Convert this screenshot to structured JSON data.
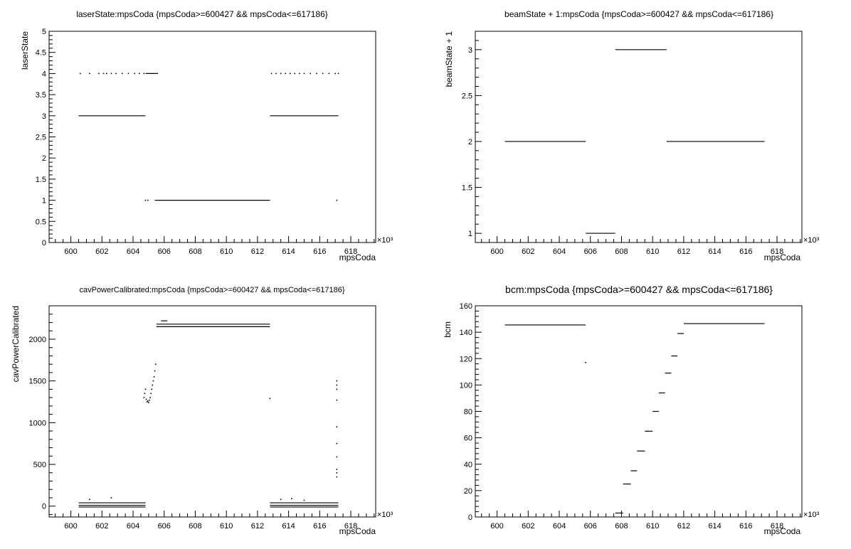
{
  "chart_data": [
    {
      "type": "scatter",
      "title": "laserState:mpsCoda {mpsCoda>=600427 && mpsCoda<=617186}",
      "xlabel": "mpsCoda",
      "ylabel": "laserState",
      "x_multiplier": "×10³",
      "xlim": [
        598.6,
        619.6
      ],
      "ylim": [
        0,
        5
      ],
      "x_ticks": [
        "600",
        "602",
        "604",
        "606",
        "608",
        "610",
        "612",
        "614",
        "616",
        "618"
      ],
      "y_ticks": [
        "0",
        "0.5",
        "1",
        "1.5",
        "2",
        "2.5",
        "3",
        "3.5",
        "4",
        "4.5",
        "5"
      ],
      "segments": [
        {
          "x": [
            600.5,
            604.8
          ],
          "y": 3
        },
        {
          "x": [
            612.8,
            617.2
          ],
          "y": 3
        },
        {
          "x": [
            605.4,
            612.8
          ],
          "y": 1
        },
        {
          "x": [
            604.8,
            605.6
          ],
          "y": 4
        }
      ],
      "points": [
        [
          600.6,
          4
        ],
        [
          601.2,
          4
        ],
        [
          601.8,
          4
        ],
        [
          602.1,
          4
        ],
        [
          602.3,
          4
        ],
        [
          602.6,
          4
        ],
        [
          602.9,
          4
        ],
        [
          603.3,
          4
        ],
        [
          603.7,
          4
        ],
        [
          604.1,
          4
        ],
        [
          604.4,
          4
        ],
        [
          604.7,
          4
        ],
        [
          612.9,
          4
        ],
        [
          613.2,
          4
        ],
        [
          613.5,
          4
        ],
        [
          613.8,
          4
        ],
        [
          614.1,
          4
        ],
        [
          614.4,
          4
        ],
        [
          614.7,
          4
        ],
        [
          615.0,
          4
        ],
        [
          615.4,
          4
        ],
        [
          615.8,
          4
        ],
        [
          616.2,
          4
        ],
        [
          616.6,
          4
        ],
        [
          617.0,
          4
        ],
        [
          617.2,
          4
        ],
        [
          604.8,
          1
        ],
        [
          604.95,
          1
        ],
        [
          617.1,
          1
        ]
      ],
      "grid": false
    },
    {
      "type": "scatter",
      "title": "beamState + 1:mpsCoda {mpsCoda>=600427 && mpsCoda<=617186}",
      "xlabel": "mpsCoda",
      "ylabel": "beamState + 1",
      "x_multiplier": "×10³",
      "xlim": [
        598.6,
        619.6
      ],
      "ylim": [
        0.9,
        3.2
      ],
      "x_ticks": [
        "600",
        "602",
        "604",
        "606",
        "608",
        "610",
        "612",
        "614",
        "616",
        "618"
      ],
      "y_ticks": [
        "1",
        "1.5",
        "2",
        "2.5",
        "3"
      ],
      "segments": [
        {
          "x": [
            600.5,
            605.7
          ],
          "y": 2
        },
        {
          "x": [
            605.7,
            607.6
          ],
          "y": 1
        },
        {
          "x": [
            607.6,
            610.9
          ],
          "y": 3
        },
        {
          "x": [
            610.9,
            617.2
          ],
          "y": 2
        }
      ],
      "points": [],
      "grid": false
    },
    {
      "type": "scatter",
      "title": "cavPowerCalibrated:mpsCoda {mpsCoda>=600427 && mpsCoda<=617186}",
      "xlabel": "mpsCoda",
      "ylabel": "cavPowerCalibrated",
      "x_multiplier": "×10³",
      "xlim": [
        598.6,
        619.6
      ],
      "ylim": [
        -130,
        2400
      ],
      "x_ticks": [
        "600",
        "602",
        "604",
        "606",
        "608",
        "610",
        "612",
        "614",
        "616",
        "618"
      ],
      "y_ticks": [
        "0",
        "500",
        "1000",
        "1500",
        "2000"
      ],
      "segments": [
        {
          "x": [
            600.5,
            604.8
          ],
          "y": -10
        },
        {
          "x": [
            600.5,
            604.8
          ],
          "y": 10
        },
        {
          "x": [
            600.5,
            604.8
          ],
          "y": 40
        },
        {
          "x": [
            612.8,
            617.2
          ],
          "y": -10
        },
        {
          "x": [
            612.8,
            617.2
          ],
          "y": 10
        },
        {
          "x": [
            612.8,
            617.2
          ],
          "y": 40
        },
        {
          "x": [
            605.5,
            612.8
          ],
          "y": 2150
        },
        {
          "x": [
            605.5,
            612.8
          ],
          "y": 2180
        },
        {
          "x": [
            605.8,
            606.2
          ],
          "y": 2220
        }
      ],
      "points": [
        [
          601.2,
          80
        ],
        [
          602.6,
          100
        ],
        [
          613.5,
          80
        ],
        [
          614.2,
          90
        ],
        [
          615.0,
          70
        ],
        [
          612.8,
          1290
        ],
        [
          604.7,
          1300
        ],
        [
          604.75,
          1350
        ],
        [
          604.8,
          1400
        ],
        [
          604.85,
          1280
        ],
        [
          604.9,
          1250
        ],
        [
          604.95,
          1260
        ],
        [
          605.0,
          1240
        ],
        [
          605.05,
          1270
        ],
        [
          605.1,
          1300
        ],
        [
          605.15,
          1350
        ],
        [
          605.2,
          1400
        ],
        [
          605.25,
          1450
        ],
        [
          605.3,
          1500
        ],
        [
          605.35,
          1550
        ],
        [
          605.4,
          1620
        ],
        [
          605.45,
          1700
        ],
        [
          617.1,
          1500
        ],
        [
          617.1,
          1450
        ],
        [
          617.1,
          1400
        ],
        [
          617.1,
          1270
        ],
        [
          617.1,
          950
        ],
        [
          617.1,
          750
        ],
        [
          617.1,
          590
        ],
        [
          617.1,
          440
        ],
        [
          617.1,
          400
        ],
        [
          617.1,
          350
        ]
      ],
      "grid": false
    },
    {
      "type": "scatter",
      "title": "bcm:mpsCoda {mpsCoda>=600427 && mpsCoda<=617186}",
      "xlabel": "mpsCoda",
      "ylabel": "bcm",
      "x_multiplier": "×10³",
      "xlim": [
        598.6,
        619.6
      ],
      "ylim": [
        0,
        160
      ],
      "x_ticks": [
        "600",
        "602",
        "604",
        "606",
        "608",
        "610",
        "612",
        "614",
        "616",
        "618"
      ],
      "y_ticks": [
        "0",
        "20",
        "40",
        "60",
        "80",
        "100",
        "120",
        "140",
        "160"
      ],
      "segments": [
        {
          "x": [
            600.5,
            605.7
          ],
          "y": 145.5
        },
        {
          "x": [
            607.6,
            608.1
          ],
          "y": 3
        },
        {
          "x": [
            608.1,
            608.6
          ],
          "y": 25
        },
        {
          "x": [
            608.6,
            609.0
          ],
          "y": 35
        },
        {
          "x": [
            609.0,
            609.5
          ],
          "y": 50
        },
        {
          "x": [
            609.5,
            610.0
          ],
          "y": 65
        },
        {
          "x": [
            610.0,
            610.4
          ],
          "y": 80
        },
        {
          "x": [
            610.4,
            610.8
          ],
          "y": 94
        },
        {
          "x": [
            610.8,
            611.2
          ],
          "y": 109
        },
        {
          "x": [
            611.2,
            611.6
          ],
          "y": 122
        },
        {
          "x": [
            611.6,
            612.0
          ],
          "y": 139
        },
        {
          "x": [
            612.0,
            617.2
          ],
          "y": 146.5
        }
      ],
      "points": [
        [
          605.7,
          117
        ]
      ],
      "grid": false
    }
  ]
}
